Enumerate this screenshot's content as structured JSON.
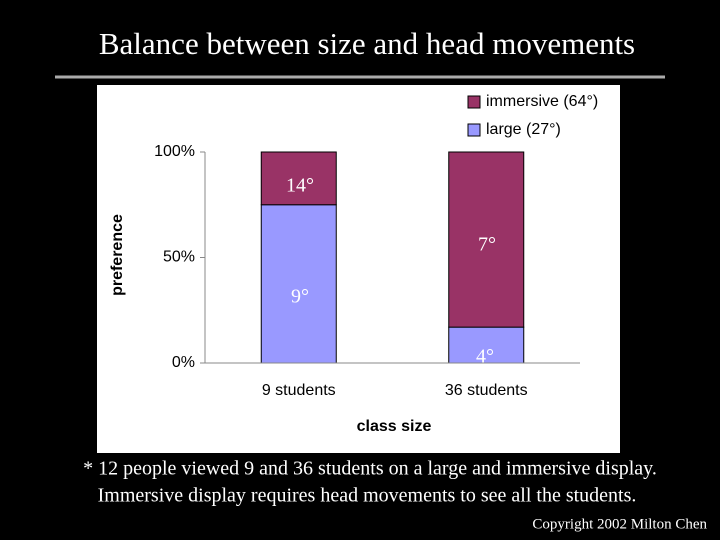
{
  "chart_data": {
    "type": "bar",
    "stacked": true,
    "title": "Balance between size and head movements",
    "categories": [
      "9 students",
      "36 students"
    ],
    "series": [
      {
        "name": "large (27°)",
        "color": "#9999ff",
        "values": [
          75,
          17
        ]
      },
      {
        "name": "immersive (64°)",
        "color": "#993366",
        "values": [
          25,
          83
        ]
      }
    ],
    "annotations": [
      "14°",
      "7°",
      "9°",
      "4°"
    ],
    "ylim": [
      0,
      100
    ],
    "yticks": [
      {
        "value": 0,
        "label": "0%"
      },
      {
        "value": 50,
        "label": "50%"
      },
      {
        "value": 100,
        "label": "100%"
      }
    ],
    "xlabel": "class size",
    "ylabel": "preference",
    "grid": false,
    "legend": "top-right"
  },
  "footnote": [
    "* 12 people viewed 9 and 36 students on a large and immersive display.",
    "Immersive display requires head movements to see all the students."
  ],
  "copyright": "Copyright 2002 Milton Chen"
}
